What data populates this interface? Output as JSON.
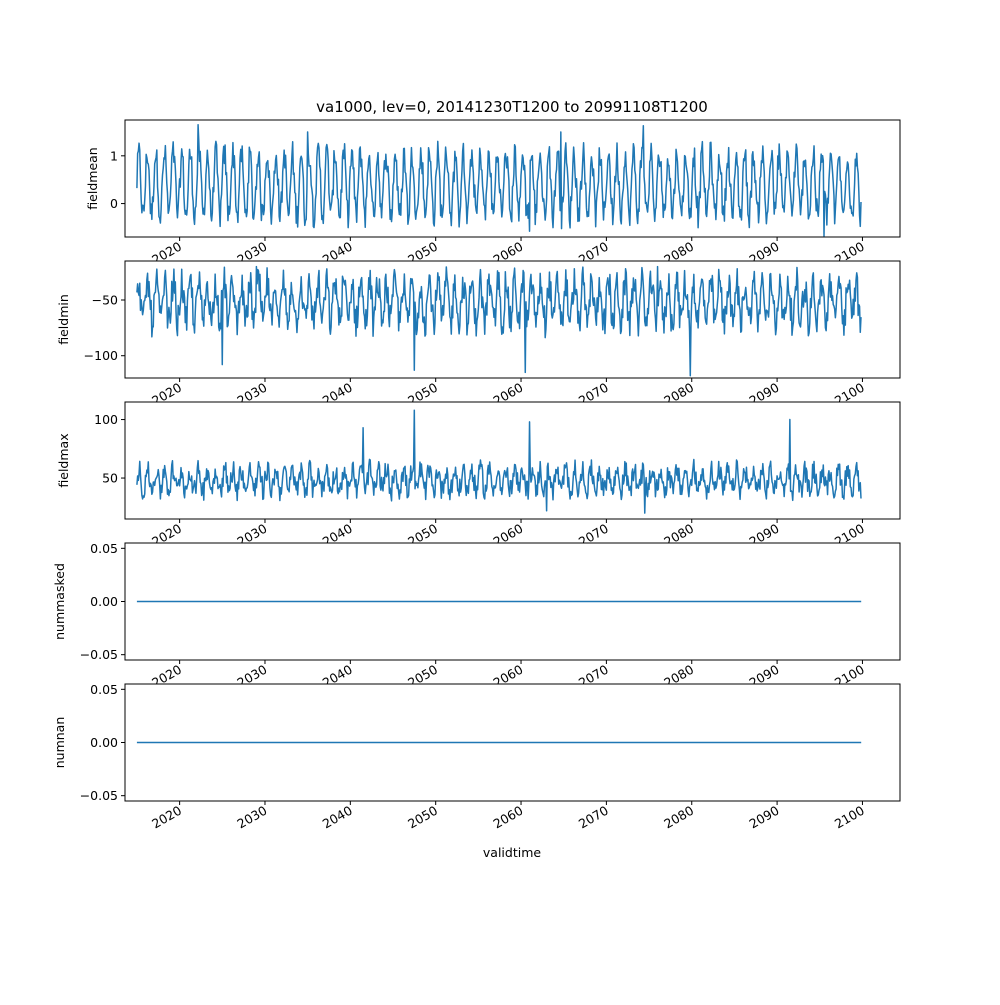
{
  "chart_data": {
    "type": "line",
    "title": "va1000, lev=0, 20141230T1200 to 20991108T1200",
    "xlabel": "validtime",
    "x_start": "2014-12-30",
    "x_end": "2099-11-08",
    "x_tick_labels": [
      "2020",
      "2030",
      "2040",
      "2050",
      "2060",
      "2070",
      "2080",
      "2090",
      "2100"
    ],
    "x_tick_years": [
      2020,
      2030,
      2040,
      2050,
      2060,
      2070,
      2080,
      2090,
      2100
    ],
    "xlim": [
      2013.6,
      2104.4
    ],
    "colors": {
      "line": "#1f77b4"
    },
    "panels": [
      {
        "ylabel": "fieldmean",
        "ylim": [
          -0.7,
          1.75
        ],
        "y_ticks": [
          0,
          1
        ],
        "y_tick_labels": [
          "0",
          "1"
        ],
        "series": {
          "kind": "oscillating",
          "base": 0.4,
          "amplitude": 0.65,
          "cycles_per_year": 1,
          "noise": 0.28,
          "peaks": [
            [
              2022.2,
              1.65
            ],
            [
              2035.0,
              1.5
            ],
            [
              2064.7,
              1.5
            ],
            [
              2074.3,
              1.63
            ]
          ],
          "troughs": [
            [
              2061.0,
              -0.58
            ],
            [
              2095.5,
              -0.68
            ]
          ]
        }
      },
      {
        "ylabel": "fieldmin",
        "ylim": [
          -120,
          -15
        ],
        "y_ticks": [
          -100,
          -50
        ],
        "y_tick_labels": [
          "−100",
          "−50"
        ],
        "series": {
          "kind": "oscillating",
          "base": -52,
          "amplitude": 18,
          "cycles_per_year": 1,
          "noise": 14,
          "peaks": [
            [
              2029.0,
              -20
            ],
            [
              2076.0,
              -20
            ]
          ],
          "troughs": [
            [
              2047.5,
              -113
            ],
            [
              2060.5,
              -115
            ],
            [
              2079.8,
              -118
            ],
            [
              2025.0,
              -108
            ]
          ]
        }
      },
      {
        "ylabel": "fieldmax",
        "ylim": [
          15,
          115
        ],
        "y_ticks": [
          50,
          100
        ],
        "y_tick_labels": [
          "50",
          "100"
        ],
        "series": {
          "kind": "oscillating",
          "base": 48,
          "amplitude": 9,
          "cycles_per_year": 1,
          "noise": 9,
          "peaks": [
            [
              2047.5,
              108
            ],
            [
              2091.5,
              100
            ],
            [
              2061.0,
              98
            ],
            [
              2041.5,
              93
            ]
          ],
          "troughs": [
            [
              2074.5,
              20
            ],
            [
              2063.0,
              22
            ]
          ]
        }
      },
      {
        "ylabel": "nummasked",
        "ylim": [
          -0.055,
          0.055
        ],
        "y_ticks": [
          -0.05,
          0.0,
          0.05
        ],
        "y_tick_labels": [
          "−0.05",
          "0.00",
          "0.05"
        ],
        "series": {
          "kind": "constant",
          "value": 0.0
        }
      },
      {
        "ylabel": "numnan",
        "ylim": [
          -0.055,
          0.055
        ],
        "y_ticks": [
          -0.05,
          0.0,
          0.05
        ],
        "y_tick_labels": [
          "−0.05",
          "0.00",
          "0.05"
        ],
        "series": {
          "kind": "constant",
          "value": 0.0
        }
      }
    ]
  }
}
